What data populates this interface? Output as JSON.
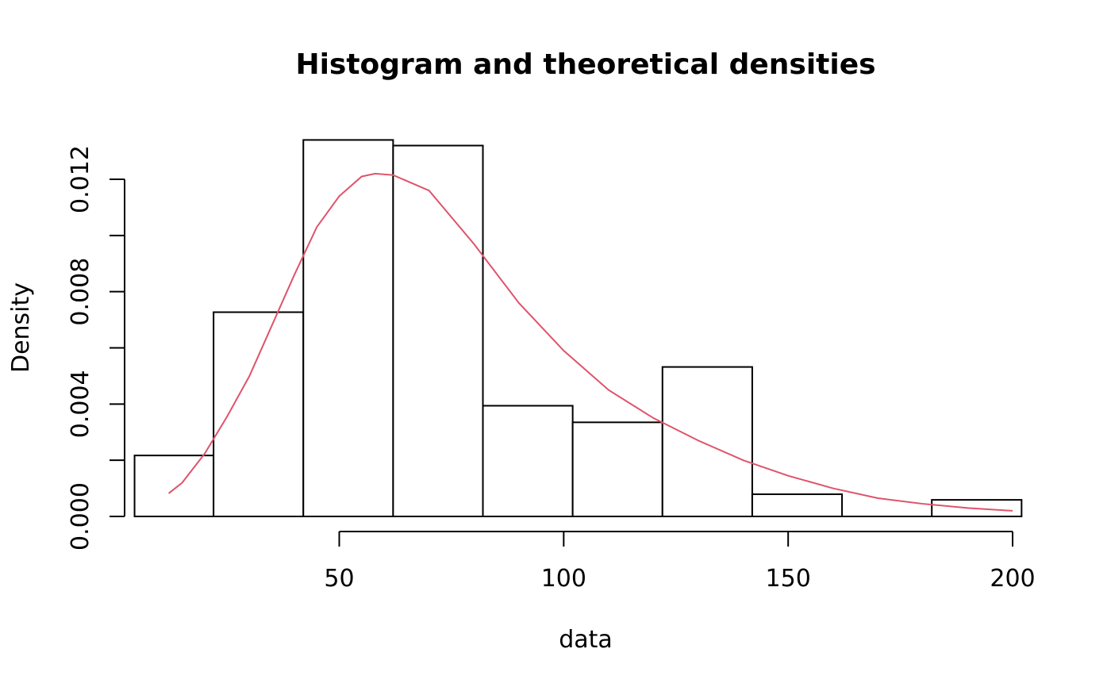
{
  "chart_data": {
    "type": "bar",
    "title": "Histogram and theoretical densities",
    "xlabel": "data",
    "ylabel": "Density",
    "grid": false,
    "xlim": [
      4.4,
      200
    ],
    "ylim": [
      0,
      0.0134
    ],
    "x_axis_ticks": [
      50,
      100,
      150,
      200
    ],
    "x_axis_tick_labels": [
      "50",
      "100",
      "150",
      "200"
    ],
    "y_axis_ticks": [
      0,
      0.002,
      0.004,
      0.006,
      0.008,
      0.01,
      0.012
    ],
    "y_axis_tick_labels": [
      "0.000",
      "",
      "0.004",
      "",
      "0.008",
      "",
      "0.012"
    ],
    "bins": [
      {
        "start": 4.4,
        "end": 22,
        "density": 0.00217
      },
      {
        "start": 22,
        "end": 42,
        "density": 0.00727
      },
      {
        "start": 42,
        "end": 62,
        "density": 0.0134
      },
      {
        "start": 62,
        "end": 82,
        "density": 0.0132
      },
      {
        "start": 82,
        "end": 102,
        "density": 0.00394
      },
      {
        "start": 102,
        "end": 122,
        "density": 0.00335
      },
      {
        "start": 122,
        "end": 142,
        "density": 0.00532
      },
      {
        "start": 142,
        "end": 162,
        "density": 0.00079
      },
      {
        "start": 162,
        "end": 182,
        "density": 0
      },
      {
        "start": 182,
        "end": 202,
        "density": 0.00059
      }
    ],
    "density_curve": {
      "color": "#DF536B",
      "points": [
        [
          12,
          0.00082
        ],
        [
          15,
          0.0012
        ],
        [
          20,
          0.00223
        ],
        [
          25,
          0.00355
        ],
        [
          30,
          0.005
        ],
        [
          35,
          0.0068
        ],
        [
          40,
          0.0086
        ],
        [
          45,
          0.0103
        ],
        [
          50,
          0.0114
        ],
        [
          55,
          0.0121
        ],
        [
          58,
          0.0122
        ],
        [
          62,
          0.01215
        ],
        [
          70,
          0.0116
        ],
        [
          80,
          0.0097
        ],
        [
          90,
          0.0076
        ],
        [
          100,
          0.0059
        ],
        [
          110,
          0.0045
        ],
        [
          120,
          0.0035
        ],
        [
          130,
          0.0027
        ],
        [
          140,
          0.002
        ],
        [
          150,
          0.00145
        ],
        [
          160,
          0.001
        ],
        [
          170,
          0.00065
        ],
        [
          180,
          0.00045
        ],
        [
          190,
          0.0003
        ],
        [
          200,
          0.0002
        ]
      ]
    }
  }
}
